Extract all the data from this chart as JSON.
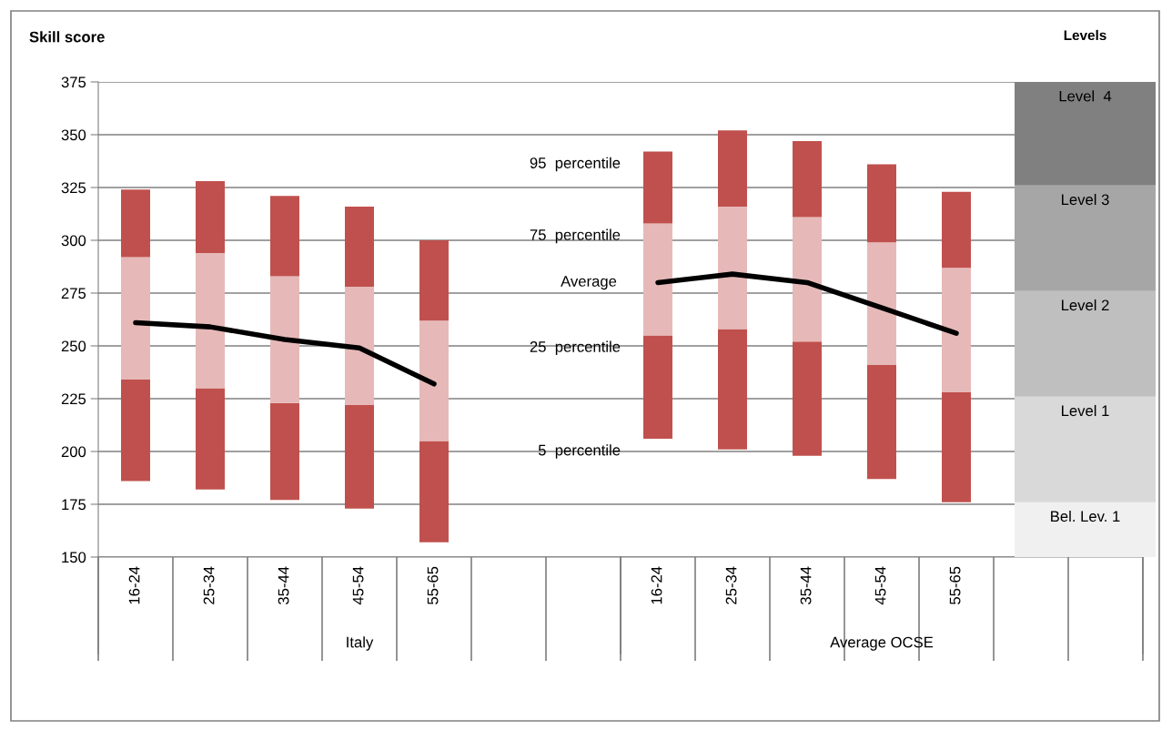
{
  "chart_data": {
    "type": "bar",
    "ylabel": "Skill score",
    "categories": [
      "16-24",
      "25-34",
      "35-44",
      "45-54",
      "55-65",
      null,
      null,
      "16-24",
      "25-34",
      "35-44",
      "45-54",
      "55-65",
      null,
      null
    ],
    "series": [
      {
        "color": "#c0504d",
        "base": [
          186,
          182,
          177,
          173,
          157,
          null,
          null,
          206,
          201,
          198,
          187,
          176,
          null,
          null
        ],
        "values": [
          48,
          48,
          46,
          49,
          48,
          null,
          null,
          49,
          57,
          54,
          54,
          52,
          null,
          null
        ]
      },
      {
        "color": "#e6b9b8",
        "base": [
          234,
          230,
          223,
          222,
          205,
          null,
          null,
          255,
          258,
          252,
          241,
          228,
          null,
          null
        ],
        "values": [
          58,
          64,
          60,
          56,
          57,
          null,
          null,
          53,
          58,
          59,
          58,
          59,
          null,
          null
        ]
      },
      {
        "color": "#c0504d",
        "base": [
          292,
          294,
          283,
          278,
          262,
          null,
          null,
          308,
          316,
          311,
          299,
          287,
          null,
          null
        ],
        "values": [
          32,
          34,
          38,
          38,
          38,
          null,
          null,
          34,
          36,
          36,
          37,
          36,
          null,
          null
        ]
      },
      {
        "type": "line",
        "color": "#000000",
        "values": [
          261,
          259,
          253,
          249,
          232,
          null,
          null,
          280,
          284,
          280,
          268,
          256,
          null,
          null
        ]
      }
    ],
    "ylim": [
      150,
      375
    ],
    "yticks": [
      150,
      175,
      200,
      225,
      250,
      275,
      300,
      325,
      350,
      375
    ],
    "grid": "y",
    "marker": "none",
    "line_style": "solid",
    "bands": [
      {
        "axis": "y",
        "from": 150,
        "to": 176,
        "label": "Bel. Lev. 1",
        "color": "#f0f0f0"
      },
      {
        "axis": "y",
        "from": 176,
        "to": 226,
        "label": "Level 1",
        "color": "#d9d9d9"
      },
      {
        "axis": "y",
        "from": 226,
        "to": 276,
        "label": "Level 2",
        "color": "#bfbfbf"
      },
      {
        "axis": "y",
        "from": 276,
        "to": 326,
        "label": "Level 3",
        "color": "#a6a6a6"
      },
      {
        "axis": "y",
        "from": 326,
        "to": 375,
        "label": "Level  4",
        "color": "#808080"
      }
    ],
    "annotations": [
      "95  percentile",
      "75  percentile",
      "Average",
      "25  percentile",
      "5  percentile",
      "Italy",
      "Average OCSE",
      "Levels"
    ]
  }
}
